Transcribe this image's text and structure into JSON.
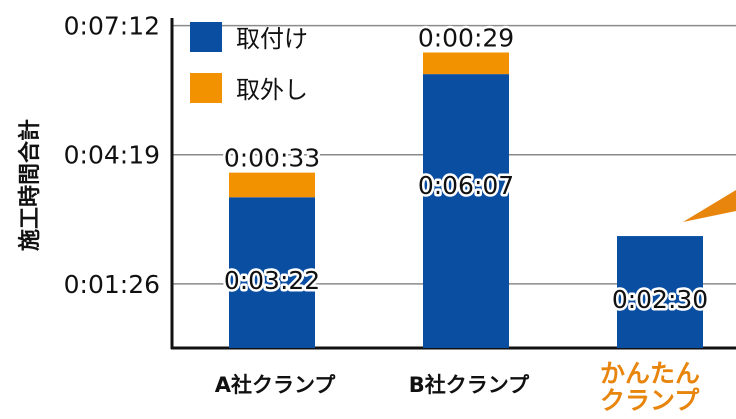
{
  "chart_data": {
    "type": "bar",
    "stacked": true,
    "title": "",
    "xlabel": "",
    "ylabel": "施工時間合計",
    "y_unit": "seconds",
    "ylim": [
      0,
      480
    ],
    "yticks": [
      {
        "value": 86,
        "label": "0:01:26"
      },
      {
        "value": 259,
        "label": "0:04:19"
      },
      {
        "value": 432,
        "label": "0:07:12"
      }
    ],
    "grid": true,
    "legend_position": "top-left",
    "categories": [
      "A社クランプ",
      "B社クランプ",
      "かんたんクランプ"
    ],
    "category_lines": [
      [
        "A社クランプ"
      ],
      [
        "B社クランプ"
      ],
      [
        "かんたん",
        "クランプ"
      ]
    ],
    "highlight_category": 2,
    "series": [
      {
        "name": "取付け",
        "color": "#0a4ea2",
        "values": [
          202,
          367,
          150
        ],
        "labels": [
          "0:03:22",
          "0:06:07",
          "0:02:30"
        ]
      },
      {
        "name": "取外し",
        "color": "#f39200",
        "values": [
          33,
          29,
          null
        ],
        "labels": [
          "0:00:33",
          "0:00:29",
          ""
        ]
      }
    ],
    "colors": {
      "axis": "#111111",
      "grid": "#8a8a8a",
      "highlight_text": "#e8850c"
    }
  }
}
